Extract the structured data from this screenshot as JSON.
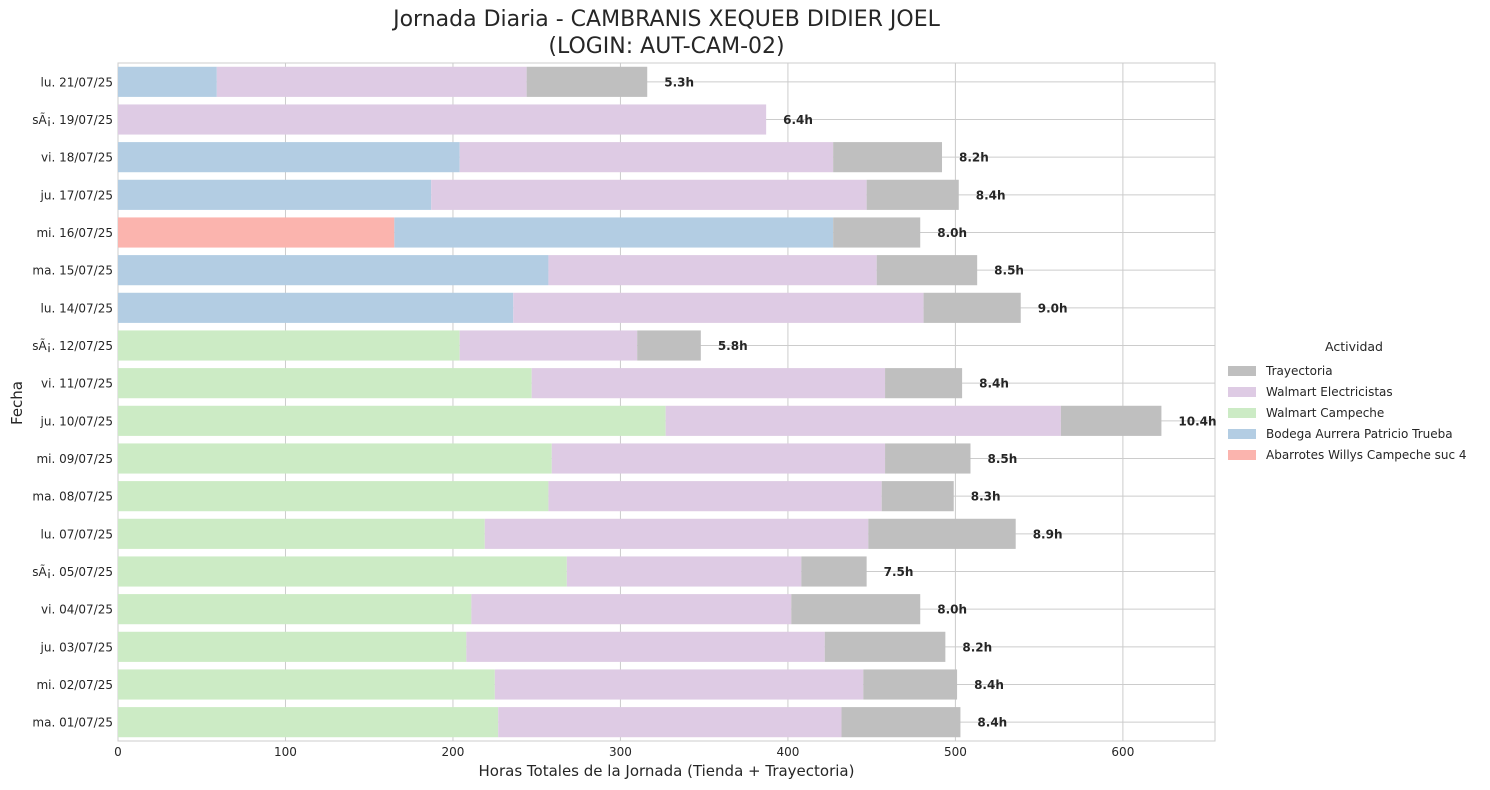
{
  "chart_data": {
    "type": "bar",
    "orientation": "horizontal",
    "stacked": true,
    "title_line1": "Jornada Diaria - CAMBRANIS XEQUEB DIDIER JOEL",
    "title_line2": "(LOGIN: AUT-CAM-02)",
    "xlabel": "Horas Totales de la Jornada (Tienda + Trayectoria)",
    "ylabel": "Fecha",
    "xlim": [
      0,
      655
    ],
    "xticks": [
      0,
      100,
      200,
      300,
      400,
      500,
      600
    ],
    "grid": true,
    "legend_position": "right",
    "legend_title": "Actividad",
    "legend_order": [
      "Trayectoria",
      "Walmart Electricistas",
      "Walmart Campeche",
      "Bodega Aurrera Patricio Trueba",
      "Abarrotes Willys Campeche suc 4"
    ],
    "colors": {
      "Abarrotes Willys Campeche suc 4": "#fbb4ae",
      "Bodega Aurrera Patricio Trueba": "#b3cde3",
      "Walmart Campeche": "#ccebc5",
      "Walmart Electricistas": "#decbe4",
      "Trayectoria": "#bfbfbf"
    },
    "categories": [
      "lu. 21/07/25",
      "sÃ¡. 19/07/25",
      "vi. 18/07/25",
      "ju. 17/07/25",
      "mi. 16/07/25",
      "ma. 15/07/25",
      "lu. 14/07/25",
      "sÃ¡. 12/07/25",
      "vi. 11/07/25",
      "ju. 10/07/25",
      "mi. 09/07/25",
      "ma. 08/07/25",
      "lu. 07/07/25",
      "sÃ¡. 05/07/25",
      "vi. 04/07/25",
      "ju. 03/07/25",
      "mi. 02/07/25",
      "ma. 01/07/25"
    ],
    "series": [
      {
        "name": "Abarrotes Willys Campeche suc 4",
        "values": [
          0,
          0,
          0,
          0,
          165,
          0,
          0,
          0,
          0,
          0,
          0,
          0,
          0,
          0,
          0,
          0,
          0,
          0
        ]
      },
      {
        "name": "Bodega Aurrera Patricio Trueba",
        "values": [
          59,
          0,
          204,
          187,
          262,
          257,
          236,
          0,
          0,
          0,
          0,
          0,
          0,
          0,
          0,
          0,
          0,
          0
        ]
      },
      {
        "name": "Walmart Campeche",
        "values": [
          0,
          0,
          0,
          0,
          0,
          0,
          0,
          204,
          247,
          327,
          259,
          257,
          219,
          268,
          211,
          208,
          225,
          227
        ]
      },
      {
        "name": "Walmart Electricistas",
        "values": [
          185,
          387,
          223,
          260,
          0,
          196,
          245,
          106,
          211,
          236,
          199,
          199,
          229,
          140,
          191,
          214,
          220,
          205
        ]
      },
      {
        "name": "Trayectoria",
        "values": [
          72,
          0,
          65,
          55,
          52,
          60,
          58,
          38,
          46,
          60,
          51,
          43,
          88,
          39,
          77,
          72,
          56,
          71
        ]
      }
    ],
    "data_labels": [
      "5.3h",
      "6.4h",
      "8.2h",
      "8.4h",
      "8.0h",
      "8.5h",
      "9.0h",
      "5.8h",
      "8.4h",
      "10.4h",
      "8.5h",
      "8.3h",
      "8.9h",
      "7.5h",
      "8.0h",
      "8.2h",
      "8.4h",
      "8.4h"
    ]
  }
}
